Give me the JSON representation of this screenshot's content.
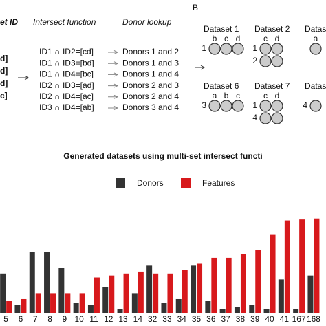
{
  "panel_a": {
    "header": "et ID",
    "function_header": "Intersect function",
    "lookup_header": "Donor lookup",
    "ids": [
      "d]",
      "d]",
      "d]",
      "c]"
    ],
    "rows": [
      [
        "ID1 ∩ ID2=[cd]",
        "Donors 1 and 2"
      ],
      [
        "ID1 ∩ ID3=[bd]",
        "Donors 1 and 3"
      ],
      [
        "ID1 ∩ ID4=[bc]",
        "Donors 1 and 4"
      ],
      [
        "ID2 ∩ ID3=[ad]",
        "Donors 2 and 3"
      ],
      [
        "ID2 ∩ ID4=[ac]",
        "Donors 2 and 4"
      ],
      [
        "ID3 ∩ ID4=[ab]",
        "Donors 3 and 4"
      ]
    ]
  },
  "panel_b": {
    "letter": "B",
    "datasets": [
      {
        "title": "Dataset 1",
        "cols": [
          "b",
          "c",
          "d"
        ],
        "rows": [
          "1"
        ]
      },
      {
        "title": "Dataset 2",
        "cols": [
          "c",
          "d"
        ],
        "rows": [
          "1",
          "2"
        ]
      },
      {
        "title": "Datas",
        "cols": [
          "a"
        ],
        "rows": []
      },
      {
        "title": "Dataset 6",
        "cols": [
          "a",
          "b",
          "c"
        ],
        "rows": [
          "3"
        ]
      },
      {
        "title": "Dataset 7",
        "cols": [
          "c",
          "d"
        ],
        "rows": [
          "1",
          "4"
        ]
      },
      {
        "title": "Datas",
        "cols": [],
        "rows": [
          "4"
        ]
      }
    ]
  },
  "chart_data": {
    "type": "bar",
    "title": "Generated datasets using multi-set intersect functi",
    "categories": [
      "5",
      "6",
      "7",
      "8",
      "9",
      "10",
      "11",
      "12",
      "13",
      "14",
      "32",
      "33",
      "34",
      "35",
      "36",
      "37",
      "38",
      "39",
      "40",
      "41",
      "167",
      "168"
    ],
    "series": [
      {
        "name": "Donors",
        "color": "#333333",
        "values": [
          40,
          8,
          62,
          62,
          46,
          10,
          8,
          26,
          4,
          20,
          48,
          10,
          14,
          48,
          12,
          4,
          6,
          8,
          4,
          34,
          4,
          38
        ]
      },
      {
        "name": "Features",
        "color": "#d7191c",
        "values": [
          12,
          14,
          20,
          20,
          20,
          20,
          36,
          38,
          40,
          42,
          40,
          40,
          44,
          50,
          56,
          56,
          60,
          64,
          80,
          94,
          95,
          96
        ]
      }
    ],
    "ylim": [
      0,
      100
    ]
  }
}
